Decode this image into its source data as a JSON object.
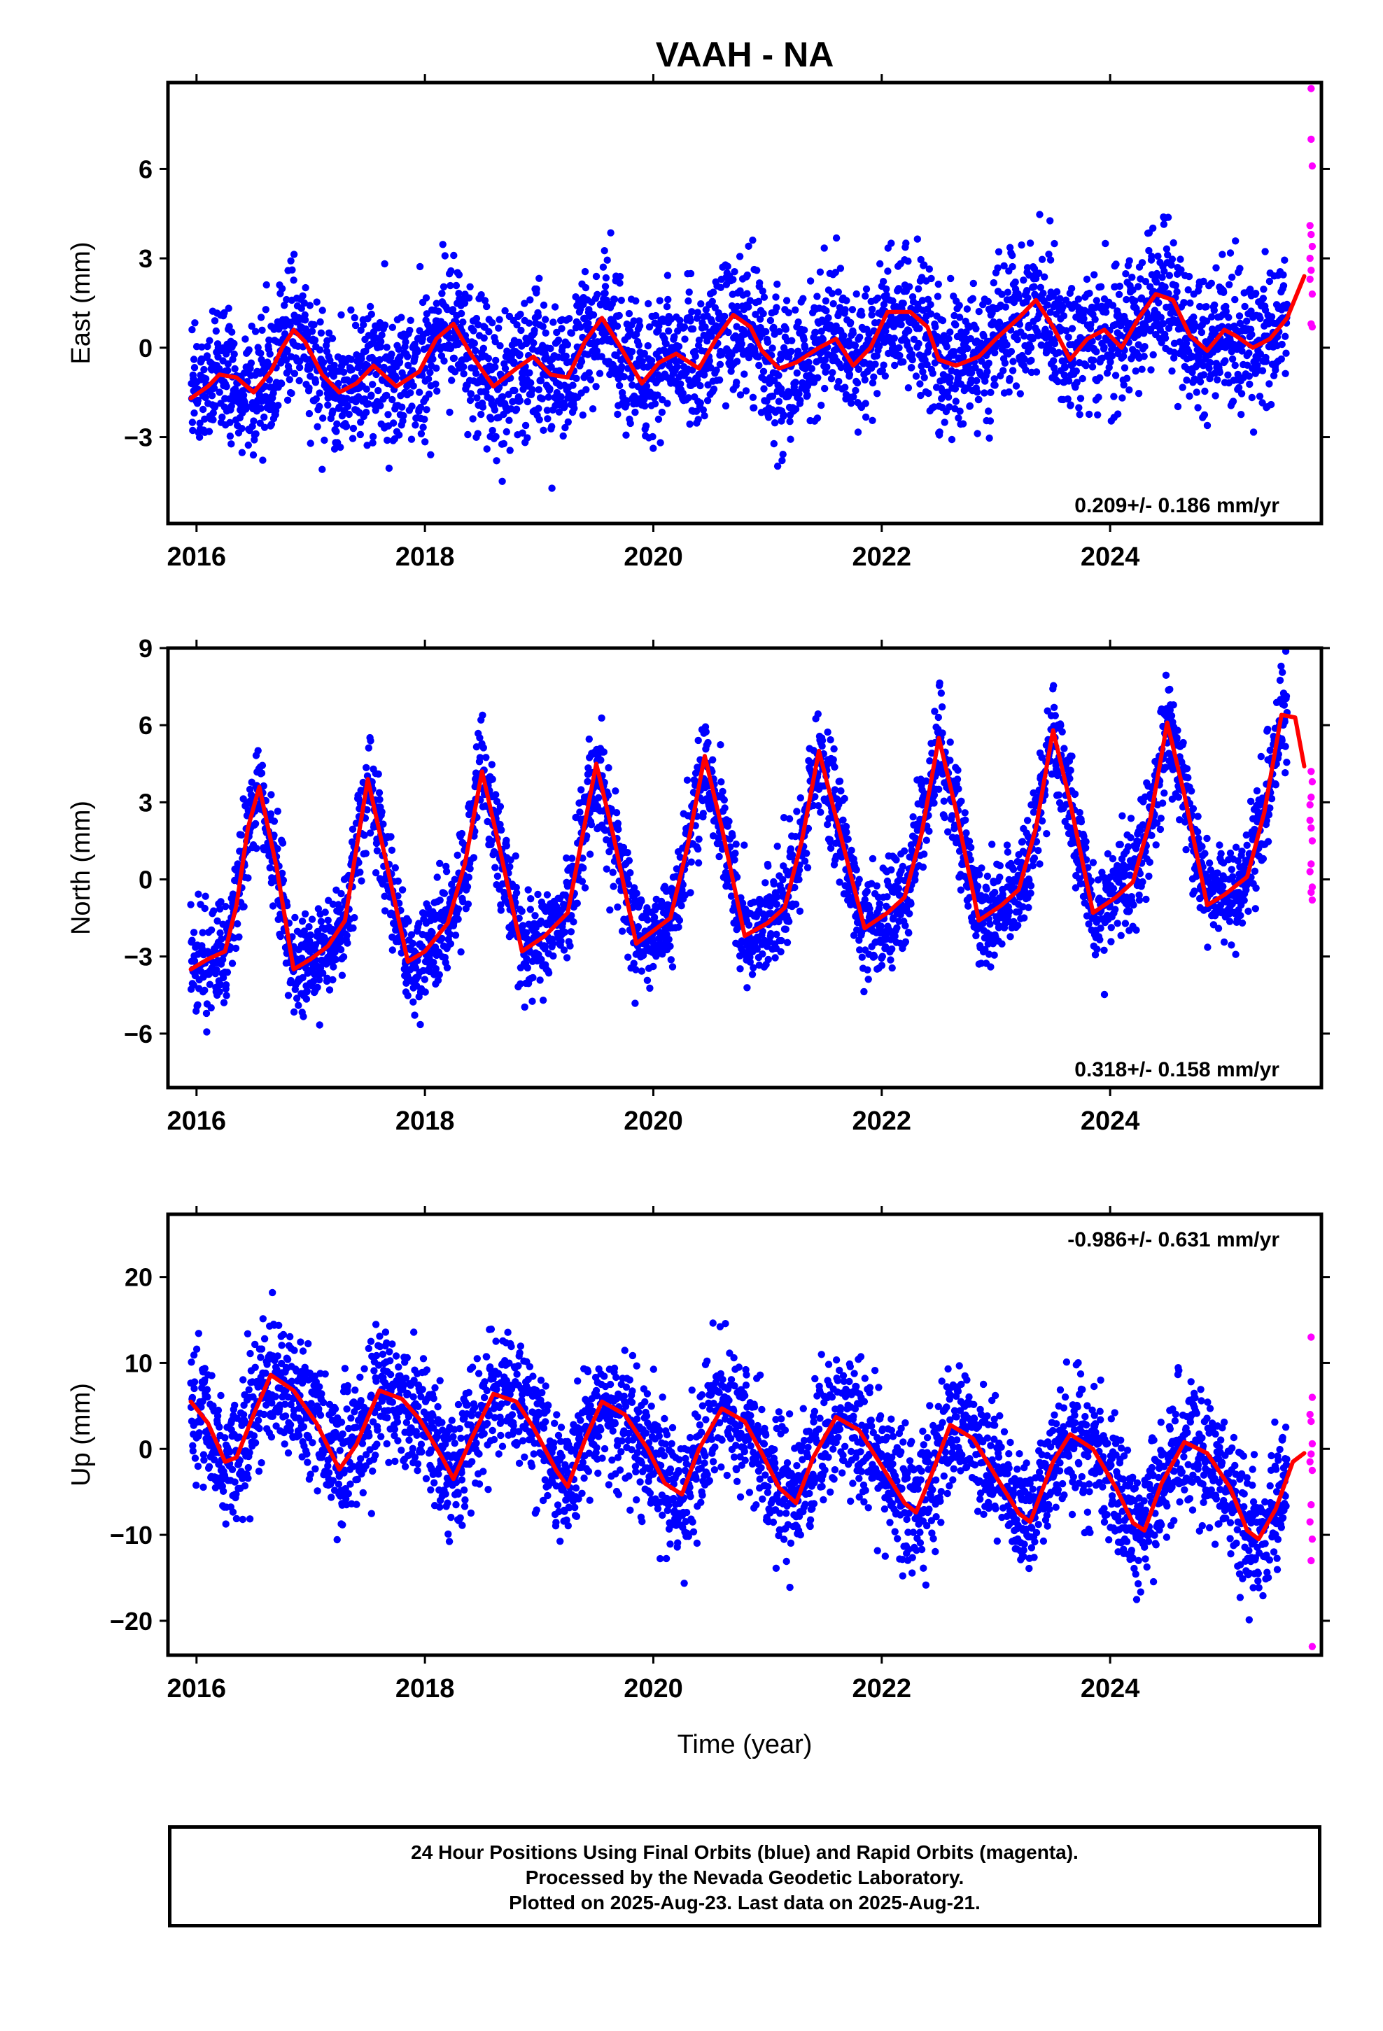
{
  "title": "VAAH - NA",
  "x_axis_label": "Time (year)",
  "colors": {
    "final_orbits": "#0000ff",
    "rapid_orbits": "#ff00ff",
    "model_fit": "#ff0000",
    "frame": "#000000"
  },
  "caption": {
    "line1": "24 Hour Positions Using Final Orbits (blue) and Rapid Orbits (magenta).",
    "line2": "Processed by the Nevada Geodetic Laboratory.",
    "line3": "Plotted on 2025-Aug-23. Last data on 2025-Aug-21."
  },
  "chart_data": [
    {
      "type": "scatter",
      "name": "east",
      "ylabel": "East (mm)",
      "xlim": [
        2015.75,
        2025.85
      ],
      "ylim": [
        -5.9,
        8.9
      ],
      "xticks": [
        2016,
        2018,
        2020,
        2022,
        2024
      ],
      "yticks": [
        -3,
        0,
        3,
        6
      ],
      "rate_label": "0.209+/- 0.186 mm/yr",
      "rate_position": "bottom-right",
      "grid": false,
      "final_data_range": [
        2015.95,
        2025.55
      ],
      "scatter_sd": 1.15,
      "model_fit": [
        [
          2015.95,
          -1.7
        ],
        [
          2016.1,
          -1.3
        ],
        [
          2016.2,
          -0.9
        ],
        [
          2016.35,
          -1.0
        ],
        [
          2016.5,
          -1.5
        ],
        [
          2016.65,
          -0.8
        ],
        [
          2016.75,
          0.0
        ],
        [
          2016.85,
          0.6
        ],
        [
          2016.95,
          0.2
        ],
        [
          2017.1,
          -0.9
        ],
        [
          2017.25,
          -1.5
        ],
        [
          2017.4,
          -1.2
        ],
        [
          2017.55,
          -0.6
        ],
        [
          2017.75,
          -1.3
        ],
        [
          2017.95,
          -0.8
        ],
        [
          2018.1,
          0.3
        ],
        [
          2018.25,
          0.8
        ],
        [
          2018.4,
          -0.2
        ],
        [
          2018.6,
          -1.3
        ],
        [
          2018.8,
          -0.7
        ],
        [
          2018.95,
          -0.3
        ],
        [
          2019.1,
          -0.9
        ],
        [
          2019.25,
          -1.0
        ],
        [
          2019.4,
          0.2
        ],
        [
          2019.55,
          1.0
        ],
        [
          2019.7,
          0.1
        ],
        [
          2019.9,
          -1.2
        ],
        [
          2020.05,
          -0.5
        ],
        [
          2020.2,
          -0.2
        ],
        [
          2020.4,
          -0.7
        ],
        [
          2020.55,
          0.3
        ],
        [
          2020.7,
          1.1
        ],
        [
          2020.85,
          0.7
        ],
        [
          2020.95,
          -0.1
        ],
        [
          2021.1,
          -0.7
        ],
        [
          2021.25,
          -0.5
        ],
        [
          2021.45,
          0.0
        ],
        [
          2021.6,
          0.3
        ],
        [
          2021.75,
          -0.6
        ],
        [
          2021.9,
          0.0
        ],
        [
          2022.05,
          1.2
        ],
        [
          2022.25,
          1.2
        ],
        [
          2022.4,
          0.7
        ],
        [
          2022.5,
          -0.4
        ],
        [
          2022.65,
          -0.6
        ],
        [
          2022.85,
          -0.3
        ],
        [
          2023.0,
          0.3
        ],
        [
          2023.2,
          1.0
        ],
        [
          2023.35,
          1.6
        ],
        [
          2023.5,
          0.7
        ],
        [
          2023.65,
          -0.4
        ],
        [
          2023.8,
          0.3
        ],
        [
          2023.95,
          0.6
        ],
        [
          2024.1,
          0.0
        ],
        [
          2024.25,
          1.0
        ],
        [
          2024.4,
          1.8
        ],
        [
          2024.55,
          1.6
        ],
        [
          2024.7,
          0.4
        ],
        [
          2024.85,
          -0.1
        ],
        [
          2025.0,
          0.6
        ],
        [
          2025.1,
          0.4
        ],
        [
          2025.25,
          0.0
        ],
        [
          2025.4,
          0.3
        ],
        [
          2025.55,
          1.0
        ],
        [
          2025.7,
          2.4
        ]
      ],
      "rapid_orbits": [
        [
          2025.76,
          8.7
        ],
        [
          2025.76,
          7.0
        ],
        [
          2025.77,
          6.1
        ],
        [
          2025.75,
          4.1
        ],
        [
          2025.76,
          3.8
        ],
        [
          2025.77,
          3.4
        ],
        [
          2025.76,
          2.6
        ],
        [
          2025.75,
          2.3
        ],
        [
          2025.77,
          1.8
        ],
        [
          2025.76,
          0.8
        ],
        [
          2025.77,
          0.7
        ],
        [
          2025.75,
          3.0
        ]
      ]
    },
    {
      "type": "scatter",
      "name": "north",
      "ylabel": "North (mm)",
      "xlim": [
        2015.75,
        2025.85
      ],
      "ylim": [
        -8.1,
        9.0
      ],
      "xticks": [
        2016,
        2018,
        2020,
        2022,
        2024
      ],
      "yticks": [
        -6,
        -3,
        0,
        3,
        6,
        9
      ],
      "rate_label": "0.318+/- 0.158 mm/yr",
      "rate_position": "bottom-right",
      "grid": false,
      "final_data_range": [
        2015.95,
        2025.55
      ],
      "scatter_sd": 1.0,
      "model_fit": [
        [
          2015.95,
          -3.5
        ],
        [
          2016.1,
          -3.1
        ],
        [
          2016.25,
          -2.8
        ],
        [
          2016.35,
          -1.0
        ],
        [
          2016.45,
          2.0
        ],
        [
          2016.55,
          3.6
        ],
        [
          2016.7,
          0.5
        ],
        [
          2016.85,
          -3.5
        ],
        [
          2017.0,
          -3.1
        ],
        [
          2017.15,
          -2.6
        ],
        [
          2017.3,
          -1.6
        ],
        [
          2017.4,
          1.2
        ],
        [
          2017.5,
          3.9
        ],
        [
          2017.65,
          0.9
        ],
        [
          2017.85,
          -3.2
        ],
        [
          2018.0,
          -2.8
        ],
        [
          2018.2,
          -1.7
        ],
        [
          2018.35,
          0.6
        ],
        [
          2018.5,
          4.2
        ],
        [
          2018.65,
          1.3
        ],
        [
          2018.85,
          -2.8
        ],
        [
          2019.05,
          -2.2
        ],
        [
          2019.25,
          -1.3
        ],
        [
          2019.35,
          1.0
        ],
        [
          2019.5,
          4.5
        ],
        [
          2019.65,
          1.7
        ],
        [
          2019.85,
          -2.5
        ],
        [
          2020.0,
          -2.0
        ],
        [
          2020.15,
          -1.5
        ],
        [
          2020.3,
          1.3
        ],
        [
          2020.45,
          4.8
        ],
        [
          2020.6,
          2.0
        ],
        [
          2020.8,
          -2.2
        ],
        [
          2021.0,
          -1.7
        ],
        [
          2021.15,
          -1.1
        ],
        [
          2021.3,
          1.5
        ],
        [
          2021.45,
          5.0
        ],
        [
          2021.6,
          2.4
        ],
        [
          2021.85,
          -1.9
        ],
        [
          2022.05,
          -1.3
        ],
        [
          2022.2,
          -0.7
        ],
        [
          2022.35,
          1.8
        ],
        [
          2022.5,
          5.5
        ],
        [
          2022.65,
          2.7
        ],
        [
          2022.85,
          -1.6
        ],
        [
          2023.05,
          -1.0
        ],
        [
          2023.2,
          -0.4
        ],
        [
          2023.35,
          2.0
        ],
        [
          2023.5,
          5.8
        ],
        [
          2023.65,
          3.0
        ],
        [
          2023.85,
          -1.3
        ],
        [
          2024.05,
          -0.7
        ],
        [
          2024.2,
          -0.1
        ],
        [
          2024.35,
          2.3
        ],
        [
          2024.5,
          6.1
        ],
        [
          2024.65,
          3.3
        ],
        [
          2024.85,
          -1.0
        ],
        [
          2025.0,
          -0.6
        ],
        [
          2025.2,
          0.1
        ],
        [
          2025.35,
          2.6
        ],
        [
          2025.5,
          6.4
        ],
        [
          2025.62,
          6.3
        ],
        [
          2025.7,
          4.4
        ]
      ],
      "rapid_orbits": [
        [
          2025.76,
          4.2
        ],
        [
          2025.77,
          3.8
        ],
        [
          2025.75,
          2.3
        ],
        [
          2025.76,
          2.0
        ],
        [
          2025.77,
          1.5
        ],
        [
          2025.76,
          0.6
        ],
        [
          2025.75,
          0.3
        ],
        [
          2025.77,
          -0.3
        ],
        [
          2025.76,
          -0.5
        ],
        [
          2025.77,
          -0.8
        ],
        [
          2025.75,
          2.9
        ],
        [
          2025.76,
          3.2
        ]
      ]
    },
    {
      "type": "scatter",
      "name": "up",
      "ylabel": "Up (mm)",
      "xlim": [
        2015.75,
        2025.85
      ],
      "ylim": [
        -24.0,
        27.3
      ],
      "xticks": [
        2016,
        2018,
        2020,
        2022,
        2024
      ],
      "yticks": [
        -20,
        -10,
        0,
        10,
        20
      ],
      "rate_label": "-0.986+/- 0.631 mm/yr",
      "rate_position": "top-right",
      "grid": false,
      "final_data_range": [
        2015.95,
        2025.55
      ],
      "scatter_sd": 3.8,
      "model_fit": [
        [
          2015.95,
          5.5
        ],
        [
          2016.1,
          3.0
        ],
        [
          2016.25,
          -1.5
        ],
        [
          2016.35,
          -1.0
        ],
        [
          2016.5,
          4.0
        ],
        [
          2016.65,
          8.6
        ],
        [
          2016.85,
          6.8
        ],
        [
          2017.05,
          3.0
        ],
        [
          2017.25,
          -2.4
        ],
        [
          2017.4,
          0.5
        ],
        [
          2017.6,
          6.8
        ],
        [
          2017.8,
          5.8
        ],
        [
          2017.95,
          3.5
        ],
        [
          2018.15,
          -1.0
        ],
        [
          2018.25,
          -3.5
        ],
        [
          2018.4,
          1.0
        ],
        [
          2018.6,
          6.4
        ],
        [
          2018.8,
          5.5
        ],
        [
          2018.95,
          2.5
        ],
        [
          2019.15,
          -2.5
        ],
        [
          2019.25,
          -4.4
        ],
        [
          2019.4,
          1.0
        ],
        [
          2019.55,
          5.5
        ],
        [
          2019.75,
          4.0
        ],
        [
          2019.95,
          0.0
        ],
        [
          2020.1,
          -4.0
        ],
        [
          2020.25,
          -5.3
        ],
        [
          2020.4,
          0.0
        ],
        [
          2020.6,
          4.7
        ],
        [
          2020.8,
          3.2
        ],
        [
          2020.95,
          -0.5
        ],
        [
          2021.1,
          -4.5
        ],
        [
          2021.25,
          -6.3
        ],
        [
          2021.4,
          -1.0
        ],
        [
          2021.6,
          3.7
        ],
        [
          2021.8,
          2.2
        ],
        [
          2022.0,
          -2.0
        ],
        [
          2022.2,
          -6.3
        ],
        [
          2022.3,
          -7.4
        ],
        [
          2022.45,
          -2.5
        ],
        [
          2022.6,
          2.8
        ],
        [
          2022.8,
          1.2
        ],
        [
          2023.0,
          -3.2
        ],
        [
          2023.2,
          -7.5
        ],
        [
          2023.3,
          -8.5
        ],
        [
          2023.5,
          -1.5
        ],
        [
          2023.65,
          1.7
        ],
        [
          2023.85,
          0.0
        ],
        [
          2024.05,
          -4.5
        ],
        [
          2024.2,
          -8.6
        ],
        [
          2024.3,
          -9.5
        ],
        [
          2024.45,
          -4.0
        ],
        [
          2024.65,
          0.8
        ],
        [
          2024.85,
          -0.5
        ],
        [
          2025.05,
          -4.5
        ],
        [
          2025.2,
          -9.5
        ],
        [
          2025.3,
          -10.5
        ],
        [
          2025.45,
          -7.0
        ],
        [
          2025.6,
          -1.5
        ],
        [
          2025.7,
          -0.5
        ]
      ],
      "rapid_orbits": [
        [
          2025.76,
          13.0
        ],
        [
          2025.77,
          6.0
        ],
        [
          2025.75,
          4.0
        ],
        [
          2025.76,
          3.2
        ],
        [
          2025.77,
          0.6
        ],
        [
          2025.76,
          -0.6
        ],
        [
          2025.75,
          -1.5
        ],
        [
          2025.77,
          -2.5
        ],
        [
          2025.76,
          -6.5
        ],
        [
          2025.75,
          -8.5
        ],
        [
          2025.77,
          -10.5
        ],
        [
          2025.76,
          -13.0
        ],
        [
          2025.77,
          -23.0
        ]
      ]
    }
  ]
}
